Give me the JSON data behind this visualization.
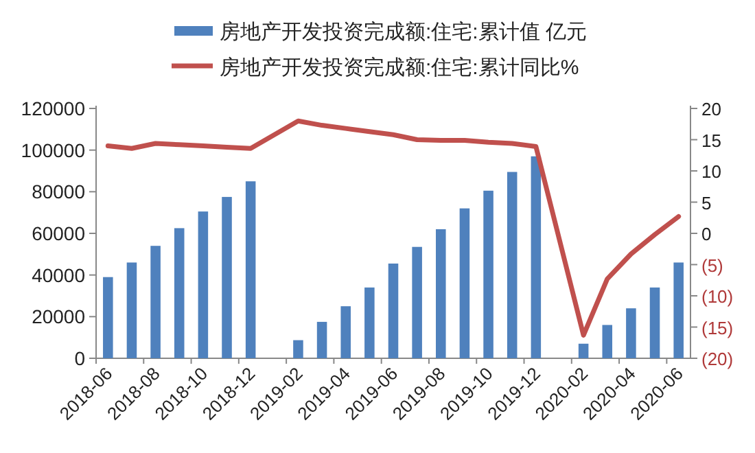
{
  "chart_data": {
    "type": "bar",
    "categories": [
      "2018-06",
      null,
      "2018-08",
      null,
      "2018-10",
      null,
      "2018-12",
      null,
      "2019-02",
      null,
      "2019-04",
      null,
      "2019-06",
      null,
      "2019-08",
      null,
      "2019-10",
      null,
      "2019-12",
      null,
      "2020-02",
      null,
      "2020-04",
      null,
      "2020-06"
    ],
    "series": [
      {
        "name": "房地产开发投资完成额:住宅:累计值 亿元",
        "color": "#4f81bd",
        "values": [
          39000,
          46000,
          54000,
          62500,
          70500,
          77500,
          85000,
          null,
          8700,
          17500,
          25000,
          34000,
          45500,
          53500,
          62000,
          72000,
          80500,
          89500,
          97000,
          null,
          7000,
          16000,
          24000,
          34000,
          46000
        ]
      },
      {
        "name": "房地产开发投资完成额:住宅:累计同比%",
        "type": "line",
        "axis": "y2",
        "color": "#c0504d",
        "values": [
          14.0,
          13.6,
          14.4,
          14.2,
          14.0,
          13.8,
          13.6,
          null,
          18.0,
          17.3,
          16.8,
          16.3,
          15.8,
          15.0,
          14.9,
          14.9,
          14.6,
          14.4,
          13.9,
          null,
          -16.3,
          -7.3,
          -3.3,
          -0.2,
          2.7
        ]
      }
    ],
    "ylim": [
      0,
      120000
    ],
    "yticks": [
      0,
      20000,
      40000,
      60000,
      80000,
      100000,
      120000
    ],
    "y2lim": [
      -20,
      20
    ],
    "y2ticks": [
      {
        "value": -20,
        "label": "(20)"
      },
      {
        "value": -15,
        "label": "(15)"
      },
      {
        "value": -10,
        "label": "(10)"
      },
      {
        "value": -5,
        "label": "(5)"
      },
      0,
      5,
      10,
      15,
      20
    ],
    "legend": "top",
    "grid": false,
    "line_style": "solid",
    "marker": "none"
  }
}
